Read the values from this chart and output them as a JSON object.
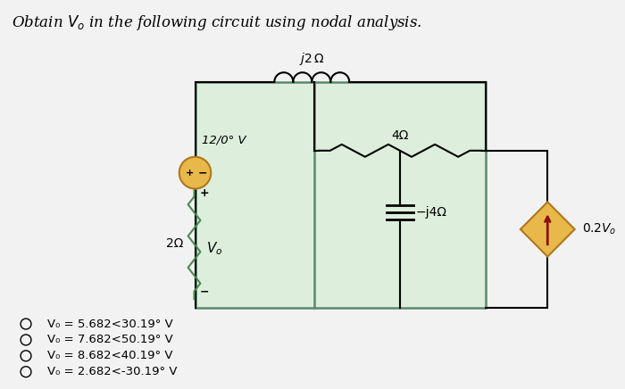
{
  "title": "Obtain $V_o$ in the following circuit using nodal analysis.",
  "title_fontsize": 12,
  "background_color": "#f2f2f2",
  "circuit_bg": "#ddeedd",
  "circuit_border": "#5a8a6a",
  "options": [
    "V₀ = 5.682<30.19° V",
    "V₀ = 7.682<50.19° V",
    "V₀ = 8.682<40.19° V",
    "V₀ = 2.682<-30.19° V"
  ],
  "option_fontsize": 9.5,
  "inductor_label": "$j2\\,\\Omega$",
  "resistor4_label": "4Ω",
  "resistor2_label": "2Ω",
  "cap_label": "−j4Ω",
  "source_label": "12/0° V",
  "dep_source_label": "0.2$V_o$",
  "Vo_label": "$V_o$",
  "source_color": "#e8b84b",
  "source_border": "#b07820",
  "dep_source_fill": "#e8b84b",
  "dep_source_border": "#b07820",
  "dep_arrow_color": "#8b1010",
  "resistor_color_green": "#4a8a4a",
  "wire_color": "#000000",
  "lw": 1.5
}
